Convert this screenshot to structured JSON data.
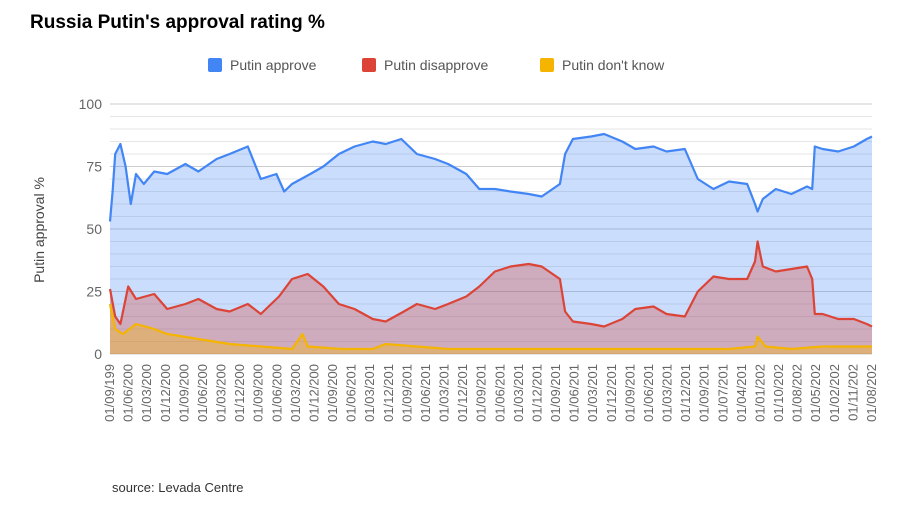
{
  "title": "Russia Putin's approval rating %",
  "source": "source: Levada Centre",
  "chart_data": {
    "type": "area",
    "title": "Russia Putin's approval rating %",
    "ylabel": "Putin approval %",
    "xlabel": "",
    "ylim": [
      0,
      100
    ],
    "yticks": [
      0,
      25,
      50,
      75,
      100
    ],
    "grid": true,
    "legend_position": "top",
    "xtick_labels": [
      "01/09/199",
      "01/06/200",
      "01/03/200",
      "01/12/200",
      "01/09/200",
      "01/06/200",
      "01/03/200",
      "01/12/200",
      "01/09/200",
      "01/06/200",
      "01/03/200",
      "01/12/200",
      "01/09/200",
      "01/06/201",
      "01/03/201",
      "01/12/201",
      "01/09/201",
      "01/06/201",
      "01/03/201",
      "01/12/201",
      "01/09/201",
      "01/06/201",
      "01/03/201",
      "01/12/201",
      "01/09/201",
      "01/06/201",
      "01/03/201",
      "01/12/201",
      "01/09/201",
      "01/06/201",
      "01/03/201",
      "01/12/201",
      "01/09/201",
      "01/07/201",
      "01/04/201",
      "01/01/202",
      "01/10/202",
      "01/08/202",
      "01/05/202",
      "01/02/202",
      "01/11/202",
      "01/08/202"
    ],
    "x_start": "1999-08",
    "x_end": "2024-01",
    "series": [
      {
        "name": "Putin approve",
        "color": "#4285f4",
        "fill": "rgba(66,133,244,0.28)",
        "points": [
          [
            "1999-08",
            53
          ],
          [
            "1999-09",
            65
          ],
          [
            "1999-10",
            80
          ],
          [
            "1999-12",
            84
          ],
          [
            "2000-02",
            75
          ],
          [
            "2000-04",
            60
          ],
          [
            "2000-06",
            72
          ],
          [
            "2000-09",
            68
          ],
          [
            "2001-01",
            73
          ],
          [
            "2001-06",
            72
          ],
          [
            "2002-01",
            76
          ],
          [
            "2002-06",
            73
          ],
          [
            "2003-01",
            78
          ],
          [
            "2003-06",
            80
          ],
          [
            "2004-01",
            83
          ],
          [
            "2004-06",
            70
          ],
          [
            "2004-12",
            72
          ],
          [
            "2005-03",
            65
          ],
          [
            "2005-06",
            68
          ],
          [
            "2006-01",
            72
          ],
          [
            "2006-06",
            75
          ],
          [
            "2006-12",
            80
          ],
          [
            "2007-06",
            83
          ],
          [
            "2008-01",
            85
          ],
          [
            "2008-06",
            84
          ],
          [
            "2008-12",
            86
          ],
          [
            "2009-06",
            80
          ],
          [
            "2010-01",
            78
          ],
          [
            "2010-06",
            76
          ],
          [
            "2011-01",
            72
          ],
          [
            "2011-06",
            66
          ],
          [
            "2011-12",
            66
          ],
          [
            "2012-06",
            65
          ],
          [
            "2013-01",
            64
          ],
          [
            "2013-06",
            63
          ],
          [
            "2014-01",
            68
          ],
          [
            "2014-03",
            80
          ],
          [
            "2014-06",
            86
          ],
          [
            "2015-01",
            87
          ],
          [
            "2015-06",
            88
          ],
          [
            "2016-01",
            85
          ],
          [
            "2016-06",
            82
          ],
          [
            "2017-01",
            83
          ],
          [
            "2017-06",
            81
          ],
          [
            "2018-01",
            82
          ],
          [
            "2018-06",
            70
          ],
          [
            "2018-12",
            66
          ],
          [
            "2019-06",
            69
          ],
          [
            "2020-01",
            68
          ],
          [
            "2020-04",
            60
          ],
          [
            "2020-05",
            57
          ],
          [
            "2020-07",
            62
          ],
          [
            "2020-12",
            66
          ],
          [
            "2021-06",
            64
          ],
          [
            "2021-12",
            67
          ],
          [
            "2022-02",
            66
          ],
          [
            "2022-03",
            83
          ],
          [
            "2022-06",
            82
          ],
          [
            "2022-12",
            81
          ],
          [
            "2023-06",
            83
          ],
          [
            "2023-11",
            86
          ],
          [
            "2024-01",
            87
          ]
        ]
      },
      {
        "name": "Putin disapprove",
        "color": "#db4437",
        "fill": "rgba(219,68,55,0.32)",
        "points": [
          [
            "1999-08",
            26
          ],
          [
            "1999-10",
            15
          ],
          [
            "1999-12",
            12
          ],
          [
            "2000-03",
            27
          ],
          [
            "2000-06",
            22
          ],
          [
            "2001-01",
            24
          ],
          [
            "2001-06",
            18
          ],
          [
            "2002-01",
            20
          ],
          [
            "2002-06",
            22
          ],
          [
            "2003-01",
            18
          ],
          [
            "2003-06",
            17
          ],
          [
            "2004-01",
            20
          ],
          [
            "2004-06",
            16
          ],
          [
            "2005-01",
            23
          ],
          [
            "2005-06",
            30
          ],
          [
            "2005-12",
            32
          ],
          [
            "2006-06",
            27
          ],
          [
            "2006-12",
            20
          ],
          [
            "2007-06",
            18
          ],
          [
            "2008-01",
            14
          ],
          [
            "2008-06",
            13
          ],
          [
            "2009-01",
            17
          ],
          [
            "2009-06",
            20
          ],
          [
            "2010-01",
            18
          ],
          [
            "2010-06",
            20
          ],
          [
            "2011-01",
            23
          ],
          [
            "2011-06",
            27
          ],
          [
            "2011-12",
            33
          ],
          [
            "2012-06",
            35
          ],
          [
            "2013-01",
            36
          ],
          [
            "2013-06",
            35
          ],
          [
            "2014-01",
            30
          ],
          [
            "2014-03",
            17
          ],
          [
            "2014-06",
            13
          ],
          [
            "2015-01",
            12
          ],
          [
            "2015-06",
            11
          ],
          [
            "2016-01",
            14
          ],
          [
            "2016-06",
            18
          ],
          [
            "2017-01",
            19
          ],
          [
            "2017-06",
            16
          ],
          [
            "2018-01",
            15
          ],
          [
            "2018-06",
            25
          ],
          [
            "2018-12",
            31
          ],
          [
            "2019-06",
            30
          ],
          [
            "2020-01",
            30
          ],
          [
            "2020-04",
            37
          ],
          [
            "2020-05",
            45
          ],
          [
            "2020-07",
            35
          ],
          [
            "2020-12",
            33
          ],
          [
            "2021-06",
            34
          ],
          [
            "2021-12",
            35
          ],
          [
            "2022-02",
            30
          ],
          [
            "2022-03",
            16
          ],
          [
            "2022-06",
            16
          ],
          [
            "2022-12",
            14
          ],
          [
            "2023-06",
            14
          ],
          [
            "2023-11",
            12
          ],
          [
            "2024-01",
            11
          ]
        ]
      },
      {
        "name": "Putin don't know",
        "color": "#f4b400",
        "fill": "rgba(244,180,0,0.35)",
        "points": [
          [
            "1999-08",
            20
          ],
          [
            "1999-10",
            10
          ],
          [
            "2000-01",
            8
          ],
          [
            "2000-06",
            12
          ],
          [
            "2001-01",
            10
          ],
          [
            "2001-06",
            8
          ],
          [
            "2002-06",
            6
          ],
          [
            "2003-06",
            4
          ],
          [
            "2004-06",
            3
          ],
          [
            "2005-06",
            2
          ],
          [
            "2005-10",
            8
          ],
          [
            "2005-12",
            3
          ],
          [
            "2007-01",
            2
          ],
          [
            "2008-01",
            2
          ],
          [
            "2008-06",
            4
          ],
          [
            "2009-06",
            3
          ],
          [
            "2010-06",
            2
          ],
          [
            "2011-06",
            2
          ],
          [
            "2012-06",
            2
          ],
          [
            "2013-06",
            2
          ],
          [
            "2014-06",
            2
          ],
          [
            "2015-06",
            2
          ],
          [
            "2016-06",
            2
          ],
          [
            "2017-06",
            2
          ],
          [
            "2018-06",
            2
          ],
          [
            "2019-06",
            2
          ],
          [
            "2020-04",
            3
          ],
          [
            "2020-05",
            7
          ],
          [
            "2020-08",
            3
          ],
          [
            "2021-06",
            2
          ],
          [
            "2022-06",
            3
          ],
          [
            "2023-06",
            3
          ],
          [
            "2024-01",
            3
          ]
        ]
      }
    ]
  }
}
